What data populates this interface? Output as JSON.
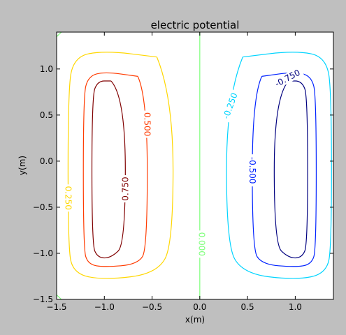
{
  "chart_data": {
    "type": "contour",
    "title": "electric potential",
    "xlabel": "x(m)",
    "ylabel": "y(m)",
    "xlim": [
      -1.5,
      1.4
    ],
    "ylim": [
      -1.5,
      1.4
    ],
    "x_ticks": [
      -1.5,
      -1.0,
      -0.5,
      0.0,
      0.5,
      1.0
    ],
    "x_tick_labels": [
      "−1.5",
      "−1.0",
      "−0.5",
      "0.0",
      "0.5",
      "1.0"
    ],
    "y_ticks": [
      -1.5,
      -1.0,
      -0.5,
      0.0,
      0.5,
      1.0
    ],
    "y_tick_labels": [
      "−1.5",
      "−1.0",
      "−0.5",
      "0.0",
      "0.5",
      "1.0"
    ],
    "grid": false,
    "levels": [
      {
        "value": 0.75,
        "label": "0.750",
        "color": "#800000",
        "x": [
          -0.93,
          -0.78,
          -0.78,
          -0.93,
          -1.07,
          -1.13,
          -1.13,
          -1.07,
          -0.93
        ],
        "y": [
          0.87,
          0.7,
          -0.9,
          -1.05,
          -1.05,
          -0.9,
          0.7,
          0.87,
          0.87
        ],
        "label_at": [
          -0.78,
          -0.3
        ],
        "label_angle": -90
      },
      {
        "value": 0.5,
        "label": "0.500",
        "color": "#ff3b00",
        "x": [
          -0.65,
          -0.55,
          -0.55,
          -0.65,
          -1.0,
          -1.17,
          -1.22,
          -1.22,
          -1.17,
          -1.0,
          -0.65
        ],
        "y": [
          0.92,
          0.7,
          -0.95,
          -1.12,
          -1.15,
          -1.12,
          -0.95,
          0.7,
          0.92,
          0.97,
          0.92
        ],
        "label_at": [
          -0.55,
          0.4
        ],
        "label_angle": 90
      },
      {
        "value": 0.25,
        "label": "0.250",
        "color": "#ffd700",
        "x": [
          -0.45,
          -0.28,
          -0.28,
          -0.45,
          -1.0,
          -1.33,
          -1.38,
          -1.38,
          -1.33,
          -1.0,
          -0.45
        ],
        "y": [
          1.13,
          0.7,
          -0.9,
          -1.22,
          -1.29,
          -1.22,
          -0.9,
          0.7,
          1.13,
          1.2,
          1.13
        ],
        "label_at": [
          -1.38,
          -0.4
        ],
        "label_angle": 90
      },
      {
        "value": 0.0,
        "label": "0.000",
        "color": "#7dff7a",
        "x": [
          0,
          0
        ],
        "y": [
          -1.5,
          1.4
        ],
        "label_at": [
          0.02,
          -0.9
        ],
        "label_angle": 90
      },
      {
        "value": -0.25,
        "label": "-0.250",
        "color": "#00d4ff",
        "x": [
          0.45,
          0.28,
          0.28,
          0.45,
          1.0,
          1.33,
          1.38,
          1.38,
          1.33,
          1.0,
          0.45
        ],
        "y": [
          1.13,
          0.7,
          -0.9,
          -1.22,
          -1.29,
          -1.22,
          -0.9,
          0.7,
          1.13,
          1.2,
          1.13
        ],
        "label_at": [
          0.32,
          0.6
        ],
        "label_angle": -70
      },
      {
        "value": -0.5,
        "label": "-0.500",
        "color": "#0022ff",
        "x": [
          0.65,
          0.55,
          0.55,
          0.65,
          1.0,
          1.17,
          1.22,
          1.22,
          1.17,
          1.0,
          0.65
        ],
        "y": [
          0.92,
          0.7,
          -0.95,
          -1.12,
          -1.15,
          -1.12,
          -0.95,
          0.7,
          0.92,
          0.97,
          0.92
        ],
        "label_at": [
          0.55,
          -0.1
        ],
        "label_angle": 90
      },
      {
        "value": -0.75,
        "label": "-0.750",
        "color": "#00007f",
        "x": [
          0.93,
          0.78,
          0.78,
          0.93,
          1.07,
          1.13,
          1.13,
          1.07,
          0.93
        ],
        "y": [
          0.87,
          0.7,
          -0.9,
          -1.05,
          -1.05,
          -0.9,
          0.7,
          0.87,
          0.87
        ],
        "label_at": [
          0.92,
          0.9
        ],
        "label_angle": -28
      }
    ],
    "corner_marks": [
      {
        "level": 0.0,
        "color": "#7dff7a",
        "x": [
          -1.5,
          -1.45
        ],
        "y": [
          1.35,
          1.4
        ]
      },
      {
        "level": 0.0,
        "color": "#7dff7a",
        "x": [
          -1.5,
          -1.45
        ],
        "y": [
          -1.45,
          -1.5
        ]
      }
    ]
  }
}
